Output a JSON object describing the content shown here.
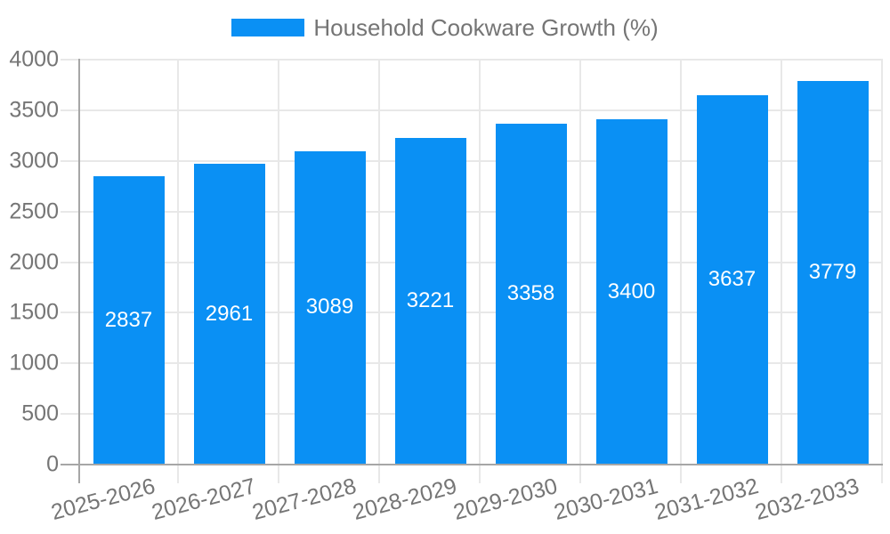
{
  "chart_data": {
    "type": "bar",
    "title": "Household Cookware Growth (%)",
    "legend_position": "top",
    "categories": [
      "2025-2026",
      "2026-2027",
      "2027-2028",
      "2028-2029",
      "2029-2030",
      "2030-2031",
      "2031-2032",
      "2032-2033"
    ],
    "series": [
      {
        "name": "Household Cookware Growth (%)",
        "values": [
          2837,
          2961,
          3089,
          3221,
          3358,
          3400,
          3637,
          3779
        ]
      }
    ],
    "values": [
      2837,
      2961,
      3089,
      3221,
      3358,
      3400,
      3637,
      3779
    ],
    "bar_value_labels": [
      "2837",
      "2961",
      "3089",
      "3221",
      "3358",
      "3400",
      "3637",
      "3779"
    ],
    "xlabel": "",
    "ylabel": "",
    "ylim": [
      0,
      4000
    ],
    "ytick_step": 500,
    "yticks": [
      0,
      500,
      1000,
      1500,
      2000,
      2500,
      3000,
      3500,
      4000
    ],
    "grid": true,
    "x_label_rotation_deg": -15,
    "colors": {
      "bar": "#0a90f4",
      "bar_label": "#ffffff",
      "axis": "#a6a6a6",
      "grid": "#e8e8e8",
      "text": "#757575"
    }
  }
}
